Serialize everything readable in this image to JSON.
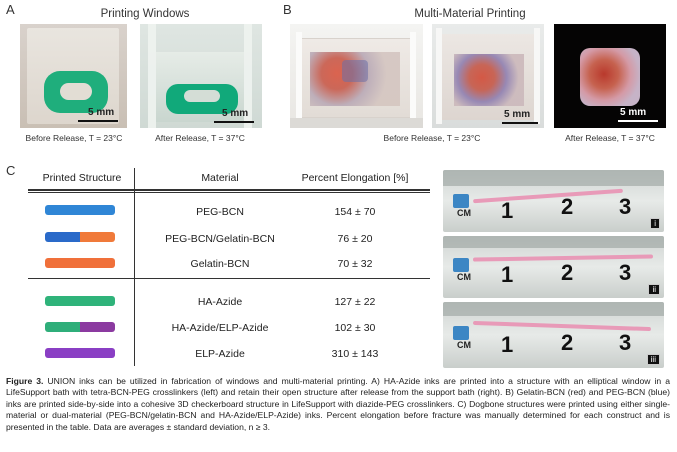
{
  "panel_a": {
    "letter": "A",
    "title": "Printing Windows",
    "left_scale": "5 mm",
    "right_scale": "5 mm",
    "left_caption": "Before Release, T = 23°C",
    "right_caption": "After Release, T = 37°C"
  },
  "panel_b": {
    "letter": "B",
    "title": "Multi-Material Printing",
    "mid_scale": "5 mm",
    "right_scale": "5 mm",
    "left_caption": "Before Release, T = 23°C",
    "right_caption": "After Release, T = 37°C"
  },
  "panel_c": {
    "letter": "C",
    "headers": [
      "Printed Structure",
      "Material",
      "Percent Elongation [%]"
    ],
    "rows": [
      {
        "material": "PEG-BCN",
        "elongation": "154 ± 70",
        "color_left": "#2f86d6",
        "color_right": "#2f86d6"
      },
      {
        "material": "PEG-BCN/Gelatin-BCN",
        "elongation": "76 ± 20",
        "color_left": "#2a6ac9",
        "color_right": "#f07a3a"
      },
      {
        "material": "Gelatin-BCN",
        "elongation": "70 ± 32",
        "color_left": "#f0703a",
        "color_right": "#f0703a"
      },
      {
        "material": "HA-Azide",
        "elongation": "127 ± 22",
        "color_left": "#2fb37a",
        "color_right": "#2fb37a"
      },
      {
        "material": "HA-Azide/ELP-Azide",
        "elongation": "102 ± 30",
        "color_left": "#2fae7a",
        "color_right": "#8b3aa0"
      },
      {
        "material": "ELP-Azide",
        "elongation": "310 ± 143",
        "color_left": "#8a3fc4",
        "color_right": "#8a3fc4"
      }
    ],
    "ruler_panels": [
      {
        "label": "i",
        "numbers": [
          "1",
          "2",
          "3"
        ],
        "cm": "CM"
      },
      {
        "label": "ii",
        "numbers": [
          "1",
          "2",
          "3"
        ],
        "cm": "CM"
      },
      {
        "label": "iii",
        "numbers": [
          "1",
          "2",
          "3"
        ],
        "cm": "CM"
      }
    ]
  },
  "caption": {
    "bold": "Figure 3.",
    "text": " UNION inks can be utilized in fabrication of windows and multi-material printing. A) HA-Azide inks are printed into a structure with an elliptical window in a LifeSupport bath with tetra-BCN-PEG crosslinkers (left) and retain their open structure after release from the support bath (right). B) Gelatin-BCN (red) and PEG-BCN (blue) inks are printed side-by-side into a cohesive 3D checkerboard structure in LifeSupport with diazide-PEG crosslinkers. C) Dogbone structures were printed using either single-material or dual-material (PEG-BCN/gelatin-BCN and HA-Azide/ELP-Azide) inks. Percent elongation before fracture was manually determined for each construct and is presented in the table. Data are averages ± standard deviation, n ≥ 3."
  }
}
